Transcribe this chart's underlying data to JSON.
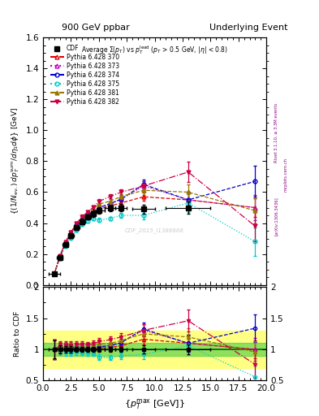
{
  "title_left": "900 GeV ppbar",
  "title_right": "Underlying Event",
  "annotation": "Average Σ(p_T) vs p_T^{lead} (p_T > 0.5 GeV, |\\eta| < 0.8)",
  "watermark": "CDF_2015_I1388868",
  "right_label1": "Rivet 3.1.10, ≥ 3.3M events",
  "right_label2": "[arXiv:1306.3436]",
  "right_label3": "mcplots.cern.ch",
  "xlim": [
    0,
    20
  ],
  "ylim_main": [
    0,
    1.6
  ],
  "ylim_ratio": [
    0.5,
    2.0
  ],
  "cdf_x": [
    1.0,
    1.5,
    2.0,
    2.5,
    3.0,
    3.5,
    4.0,
    4.5,
    5.0,
    6.0,
    7.0,
    9.0,
    13.0
  ],
  "cdf_y": [
    0.07,
    0.175,
    0.26,
    0.32,
    0.37,
    0.41,
    0.44,
    0.46,
    0.48,
    0.495,
    0.5,
    0.49,
    0.5
  ],
  "cdf_xerr": [
    0.5,
    0.25,
    0.25,
    0.25,
    0.25,
    0.25,
    0.25,
    0.25,
    0.5,
    0.5,
    0.5,
    1.0,
    2.0
  ],
  "cdf_yerr": [
    0.01,
    0.012,
    0.014,
    0.015,
    0.016,
    0.017,
    0.018,
    0.018,
    0.02,
    0.02,
    0.022,
    0.03,
    0.04
  ],
  "series": [
    {
      "label": "Pythia 6.428 370",
      "color": "#dd0000",
      "linestyle": "--",
      "marker": "^",
      "markerfill": "none",
      "x": [
        1.0,
        1.5,
        2.0,
        2.5,
        3.0,
        3.5,
        4.0,
        4.5,
        5.0,
        6.0,
        7.0,
        9.0,
        13.0,
        19.0
      ],
      "y": [
        0.07,
        0.18,
        0.27,
        0.33,
        0.38,
        0.42,
        0.45,
        0.47,
        0.49,
        0.51,
        0.53,
        0.57,
        0.55,
        0.5
      ],
      "yerr": [
        0.005,
        0.006,
        0.007,
        0.008,
        0.009,
        0.01,
        0.01,
        0.011,
        0.012,
        0.012,
        0.015,
        0.025,
        0.04,
        0.06
      ]
    },
    {
      "label": "Pythia 6.428 373",
      "color": "#bb00bb",
      "linestyle": ":",
      "marker": "^",
      "markerfill": "none",
      "x": [
        1.0,
        1.5,
        2.0,
        2.5,
        3.0,
        3.5,
        4.0,
        4.5,
        5.0,
        6.0,
        7.0,
        9.0,
        13.0,
        19.0
      ],
      "y": [
        0.07,
        0.18,
        0.27,
        0.33,
        0.385,
        0.425,
        0.455,
        0.475,
        0.5,
        0.525,
        0.555,
        0.64,
        0.55,
        0.5
      ],
      "yerr": [
        0.005,
        0.006,
        0.007,
        0.008,
        0.009,
        0.01,
        0.01,
        0.011,
        0.012,
        0.013,
        0.016,
        0.03,
        0.05,
        0.08
      ]
    },
    {
      "label": "Pythia 6.428 374",
      "color": "#0000cc",
      "linestyle": "--",
      "marker": "o",
      "markerfill": "none",
      "x": [
        1.0,
        1.5,
        2.0,
        2.5,
        3.0,
        3.5,
        4.0,
        4.5,
        5.0,
        6.0,
        7.0,
        9.0,
        13.0,
        19.0
      ],
      "y": [
        0.07,
        0.18,
        0.27,
        0.33,
        0.385,
        0.425,
        0.455,
        0.475,
        0.5,
        0.525,
        0.555,
        0.65,
        0.55,
        0.67
      ],
      "yerr": [
        0.005,
        0.006,
        0.007,
        0.008,
        0.009,
        0.01,
        0.01,
        0.011,
        0.012,
        0.013,
        0.016,
        0.03,
        0.05,
        0.1
      ]
    },
    {
      "label": "Pythia 6.428 375",
      "color": "#00cccc",
      "linestyle": ":",
      "marker": "o",
      "markerfill": "none",
      "x": [
        1.0,
        1.5,
        2.0,
        2.5,
        3.0,
        3.5,
        4.0,
        4.5,
        5.0,
        6.0,
        7.0,
        9.0,
        13.0,
        19.0
      ],
      "y": [
        0.07,
        0.172,
        0.25,
        0.305,
        0.355,
        0.39,
        0.415,
        0.43,
        0.42,
        0.43,
        0.45,
        0.45,
        0.53,
        0.28
      ],
      "yerr": [
        0.005,
        0.006,
        0.007,
        0.008,
        0.009,
        0.01,
        0.01,
        0.011,
        0.012,
        0.012,
        0.015,
        0.025,
        0.06,
        0.09
      ]
    },
    {
      "label": "Pythia 6.428 381",
      "color": "#997700",
      "linestyle": "--",
      "marker": "^",
      "markerfill": "full",
      "x": [
        1.0,
        1.5,
        2.0,
        2.5,
        3.0,
        3.5,
        4.0,
        4.5,
        5.0,
        6.0,
        7.0,
        9.0,
        13.0,
        19.0
      ],
      "y": [
        0.07,
        0.182,
        0.272,
        0.34,
        0.392,
        0.432,
        0.462,
        0.492,
        0.522,
        0.542,
        0.572,
        0.612,
        0.6,
        0.48
      ],
      "yerr": [
        0.005,
        0.006,
        0.007,
        0.008,
        0.009,
        0.01,
        0.01,
        0.011,
        0.013,
        0.013,
        0.016,
        0.028,
        0.05,
        0.08
      ]
    },
    {
      "label": "Pythia 6.428 382",
      "color": "#cc0044",
      "linestyle": "-.",
      "marker": "v",
      "markerfill": "full",
      "x": [
        1.0,
        1.5,
        2.0,
        2.5,
        3.0,
        3.5,
        4.0,
        4.5,
        5.0,
        6.0,
        7.0,
        9.0,
        13.0,
        19.0
      ],
      "y": [
        0.07,
        0.185,
        0.278,
        0.342,
        0.4,
        0.442,
        0.472,
        0.502,
        0.54,
        0.572,
        0.6,
        0.64,
        0.73,
        0.38
      ],
      "yerr": [
        0.005,
        0.006,
        0.007,
        0.009,
        0.01,
        0.011,
        0.011,
        0.012,
        0.014,
        0.014,
        0.018,
        0.03,
        0.065,
        0.1
      ]
    }
  ],
  "green_band": [
    0.9,
    1.1
  ],
  "yellow_band": [
    0.7,
    1.3
  ]
}
